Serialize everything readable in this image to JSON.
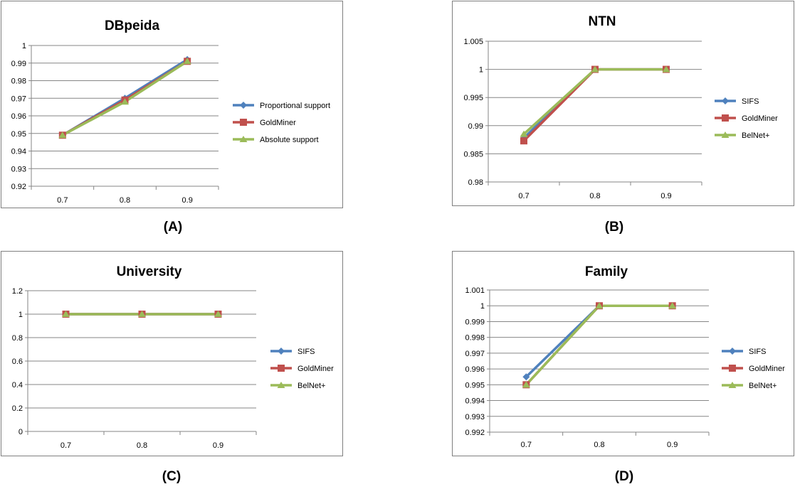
{
  "panels": [
    {
      "id": "A",
      "caption": "(A)"
    },
    {
      "id": "B",
      "caption": "(B)"
    },
    {
      "id": "C",
      "caption": "(C)"
    },
    {
      "id": "D",
      "caption": "(D)"
    }
  ],
  "colors": {
    "series1": "#4f81bd",
    "series2": "#c0504d",
    "series3": "#9bbb59",
    "grid": "#868686",
    "border": "#7f7f7f"
  },
  "chart_data": [
    {
      "type": "line",
      "title": "DBpeida",
      "categories": [
        "0.7",
        "0.8",
        "0.9"
      ],
      "ylim": [
        0.92,
        1
      ],
      "yticks": [
        "0.92",
        "0.93",
        "0.94",
        "0.95",
        "0.96",
        "0.97",
        "0.98",
        "0.99",
        "1"
      ],
      "grid": true,
      "legend": "right",
      "series": [
        {
          "name": "Proportional support",
          "marker": "diamond",
          "values": [
            0.949,
            0.97,
            0.992
          ]
        },
        {
          "name": "GoldMiner",
          "marker": "square",
          "values": [
            0.949,
            0.969,
            0.991
          ]
        },
        {
          "name": "Absolute support",
          "marker": "triangle",
          "values": [
            0.949,
            0.968,
            0.991
          ]
        }
      ]
    },
    {
      "type": "line",
      "title": "NTN",
      "categories": [
        "0.7",
        "0.8",
        "0.9"
      ],
      "ylim": [
        0.98,
        1.005
      ],
      "yticks": [
        "0.98",
        "0.985",
        "0.99",
        "0.995",
        "1",
        "1.005"
      ],
      "grid": true,
      "legend": "right",
      "series": [
        {
          "name": "SIFS",
          "marker": "diamond",
          "values": [
            0.9878,
            1.0,
            1.0
          ]
        },
        {
          "name": "GoldMiner",
          "marker": "square",
          "values": [
            0.9873,
            1.0,
            1.0
          ]
        },
        {
          "name": "BelNet+",
          "marker": "triangle",
          "values": [
            0.9885,
            1.0,
            1.0
          ]
        }
      ]
    },
    {
      "type": "line",
      "title": "University",
      "categories": [
        "0.7",
        "0.8",
        "0.9"
      ],
      "ylim": [
        0,
        1.2
      ],
      "yticks": [
        "0",
        "0.2",
        "0.4",
        "0.6",
        "0.8",
        "1",
        "1.2"
      ],
      "grid": true,
      "legend": "right",
      "series": [
        {
          "name": "SIFS",
          "marker": "diamond",
          "values": [
            1,
            1,
            1
          ]
        },
        {
          "name": "GoldMiner",
          "marker": "square",
          "values": [
            1,
            1,
            1
          ]
        },
        {
          "name": "BelNet+",
          "marker": "triangle",
          "values": [
            1,
            1,
            1
          ]
        }
      ]
    },
    {
      "type": "line",
      "title": "Family",
      "categories": [
        "0.7",
        "0.8",
        "0.9"
      ],
      "ylim": [
        0.992,
        1.001
      ],
      "yticks": [
        "0.992",
        "0.993",
        "0.994",
        "0.995",
        "0.996",
        "0.997",
        "0.998",
        "0.999",
        "1",
        "1.001"
      ],
      "grid": true,
      "legend": "right",
      "series": [
        {
          "name": "SIFS",
          "marker": "diamond",
          "values": [
            0.9955,
            1.0,
            1.0
          ]
        },
        {
          "name": "GoldMiner",
          "marker": "square",
          "values": [
            0.995,
            1.0,
            1.0
          ]
        },
        {
          "name": "BelNet+",
          "marker": "triangle",
          "values": [
            0.995,
            1.0,
            1.0
          ]
        }
      ]
    }
  ]
}
